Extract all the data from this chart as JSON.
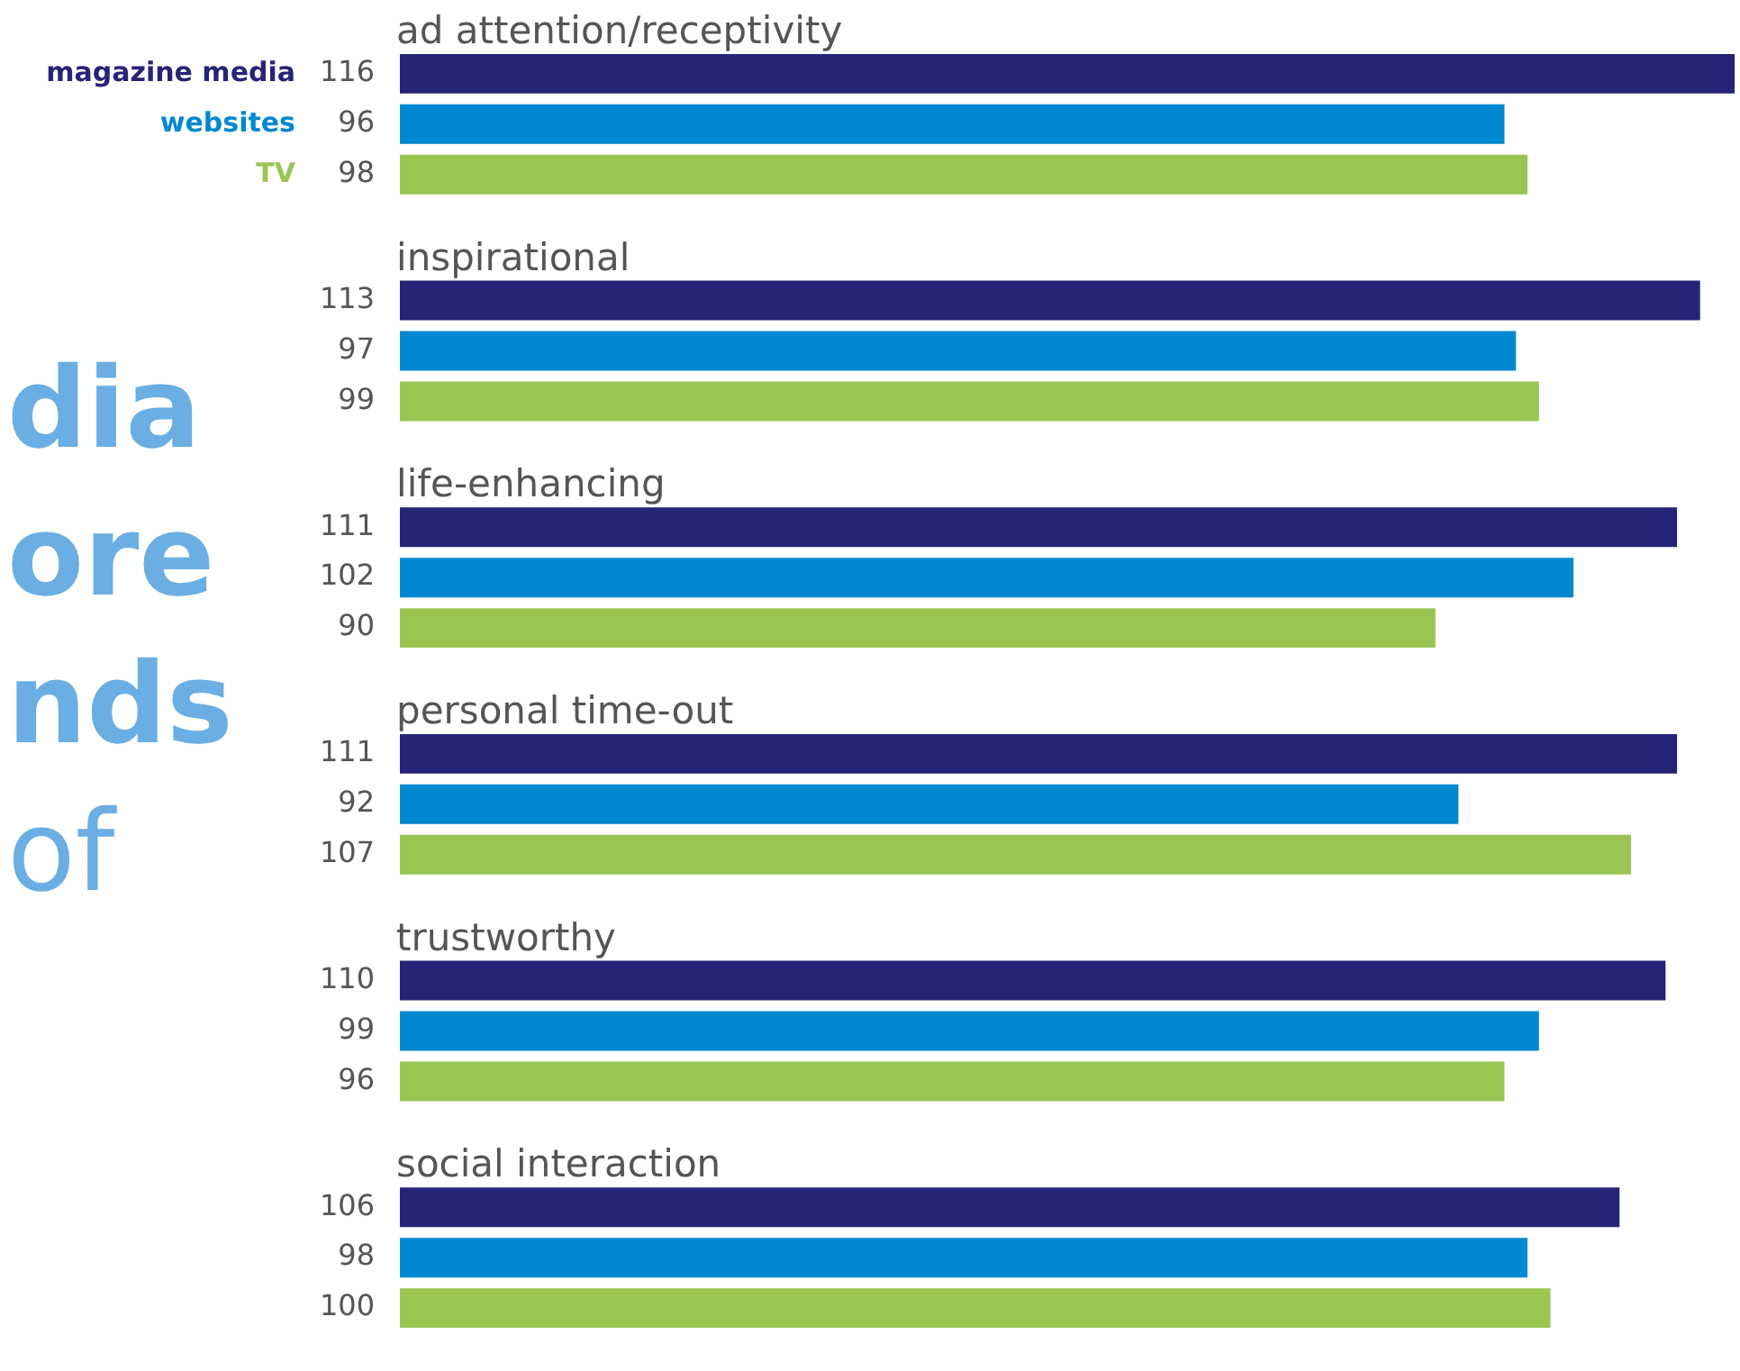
{
  "chart_data": {
    "type": "bar",
    "orientation": "horizontal",
    "categories": [
      "ad attention/receptivity",
      "inspirational",
      "life-enhancing",
      "personal time-out",
      "trustworthy",
      "social interaction"
    ],
    "series": [
      {
        "name": "magazine media",
        "color": "#262477",
        "values": [
          116,
          113,
          111,
          111,
          110,
          106
        ]
      },
      {
        "name": "websites",
        "color": "#0088d1",
        "values": [
          96,
          97,
          102,
          92,
          99,
          98
        ]
      },
      {
        "name": "TV",
        "color": "#9bc553",
        "values": [
          98,
          99,
          90,
          107,
          96,
          100
        ]
      }
    ],
    "xlim": [
      0,
      116
    ],
    "data_labels": true,
    "legend": "left",
    "annotations": [
      "dia",
      "ore",
      "nds",
      "of"
    ]
  }
}
